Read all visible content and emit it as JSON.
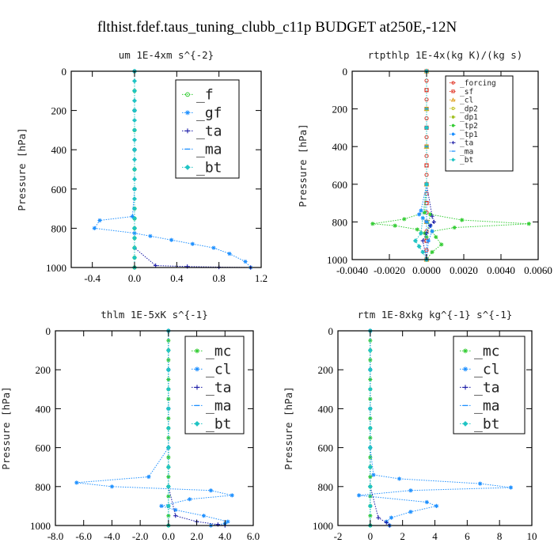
{
  "figure_title": "flthist.fdef.taus_tuning_clubb_c11p  BUDGET at250E,-12N",
  "chart_data": [
    {
      "type": "line",
      "title": "um  1E-4xm s^{-2}",
      "ylabel": "Pressure [hPa]",
      "xlim": [
        -0.6,
        1.2
      ],
      "ylim": [
        1000,
        0
      ],
      "xticks": [
        -0.4,
        0.0,
        0.4,
        0.8,
        1.2
      ],
      "xtick_labels": [
        "-0.4",
        "0.0",
        "0.4",
        "0.8",
        "1.2"
      ],
      "yticks": [
        0,
        200,
        400,
        600,
        800,
        1000
      ],
      "ytick_labels": [
        "0",
        "200",
        "400",
        "600",
        "800",
        "1000"
      ],
      "legend": "top-right",
      "series": [
        {
          "name": "_f",
          "color": "#33cc33",
          "marker": "circle",
          "x": [
            0.0,
            0.0,
            0.0,
            0.0,
            0.0,
            0.0,
            0.0,
            0.0,
            0.0,
            0.0,
            0.0,
            0.0,
            0.0,
            0.0
          ],
          "y": [
            0,
            100,
            200,
            300,
            400,
            500,
            600,
            700,
            750,
            800,
            850,
            900,
            950,
            1000
          ]
        },
        {
          "name": "_gf",
          "color": "#1e90ff",
          "marker": "star",
          "x": [
            0.0,
            0.0,
            0.0,
            0.0,
            -0.02,
            -0.33,
            -0.38,
            0.0,
            0.15,
            0.35,
            0.55,
            0.75,
            0.9,
            1.05,
            1.1
          ],
          "y": [
            0,
            200,
            400,
            600,
            740,
            760,
            800,
            825,
            840,
            860,
            880,
            900,
            930,
            970,
            1000
          ]
        },
        {
          "name": "_ta",
          "color": "#1a1aa6",
          "marker": "plus",
          "x": [
            0.0,
            0.0,
            0.0,
            0.0,
            0.0,
            0.0,
            0.2,
            0.5,
            0.8,
            1.1
          ],
          "y": [
            0,
            200,
            400,
            600,
            800,
            900,
            990,
            995,
            998,
            1000
          ]
        },
        {
          "name": "_ma",
          "color": "#1e90ff",
          "marker": "dash",
          "x": [
            0.0,
            0.0,
            0.0,
            0.0,
            0.0,
            0.0
          ],
          "y": [
            0,
            200,
            400,
            600,
            800,
            1000
          ]
        },
        {
          "name": "_bt",
          "color": "#20c4c4",
          "marker": "diamond",
          "x": [
            0.0,
            0.0,
            0.0,
            0.0,
            0.0,
            0.0,
            0.0,
            0.0,
            0.0,
            0.0,
            0.0,
            0.0,
            0.0,
            0.0,
            0.0,
            0.0,
            0.0,
            0.0,
            0.0,
            0.0,
            0.0
          ],
          "y": [
            0,
            50,
            100,
            150,
            200,
            250,
            300,
            350,
            400,
            450,
            500,
            550,
            600,
            650,
            700,
            750,
            800,
            850,
            900,
            950,
            1000
          ]
        }
      ]
    },
    {
      "type": "line",
      "title": "rtpthlp  1E-4x(kg K)/(kg s)",
      "ylabel": "Pressure [hPa]",
      "xlim": [
        -0.004,
        0.006
      ],
      "ylim": [
        1000,
        0
      ],
      "xticks": [
        -0.004,
        -0.002,
        0.0,
        0.002,
        0.004,
        0.006
      ],
      "xtick_labels": [
        "-0.0040",
        "-0.0020",
        "0.0000",
        "0.0020",
        "0.0040",
        "0.0060"
      ],
      "yticks": [
        0,
        200,
        400,
        600,
        800,
        1000
      ],
      "ytick_labels": [
        "0",
        "200",
        "400",
        "600",
        "800",
        "1000"
      ],
      "legend": "top-right",
      "series": [
        {
          "name": "_forcing",
          "color": "#e03020",
          "marker": "circle",
          "x": [
            0,
            0,
            0,
            0,
            0,
            0,
            0,
            0,
            0,
            0,
            0,
            0,
            0,
            0,
            0,
            0,
            0,
            0,
            0,
            0,
            0
          ],
          "y": [
            0,
            50,
            100,
            150,
            200,
            250,
            300,
            350,
            400,
            450,
            500,
            550,
            600,
            650,
            700,
            750,
            800,
            850,
            900,
            950,
            1000
          ]
        },
        {
          "name": "_sf",
          "color": "#e03020",
          "marker": "square",
          "x": [
            0,
            0,
            0,
            0,
            0,
            0,
            0,
            0,
            0,
            0,
            0
          ],
          "y": [
            0,
            100,
            200,
            300,
            400,
            500,
            600,
            700,
            800,
            900,
            1000
          ]
        },
        {
          "name": "_cl",
          "color": "#e0a020",
          "marker": "triangle",
          "x": [
            0,
            0,
            0,
            0,
            0,
            0
          ],
          "y": [
            0,
            200,
            400,
            600,
            800,
            1000
          ]
        },
        {
          "name": "_dp2",
          "color": "#c0c020",
          "marker": "circle",
          "x": [
            0,
            0,
            0,
            0,
            0,
            0
          ],
          "y": [
            0,
            200,
            400,
            600,
            800,
            1000
          ]
        },
        {
          "name": "_dp1",
          "color": "#a0c020",
          "marker": "star",
          "x": [
            0,
            0,
            0,
            0,
            0,
            0
          ],
          "y": [
            0,
            200,
            400,
            600,
            800,
            1000
          ]
        },
        {
          "name": "_tp2",
          "color": "#33cc33",
          "marker": "star",
          "x": [
            0.0,
            0.0,
            0.0,
            -0.0001,
            -0.0012,
            -0.0029,
            -0.0017,
            -0.0005,
            -0.0001,
            0.0,
            0.0002,
            0.0019,
            0.0055,
            0.0015,
            0.0003,
            0.0005,
            0.0008,
            0.0003,
            0.0
          ],
          "y": [
            0,
            300,
            600,
            750,
            785,
            810,
            820,
            840,
            860,
            880,
            760,
            790,
            810,
            830,
            850,
            880,
            920,
            960,
            1000
          ]
        },
        {
          "name": "_tp1",
          "color": "#1e90ff",
          "marker": "star",
          "x": [
            0.0,
            0.0,
            0.0,
            -0.0003,
            -0.0004,
            -0.0002,
            0.0,
            0.0002,
            0.0003,
            0.0001,
            0.0
          ],
          "y": [
            0,
            300,
            600,
            740,
            760,
            780,
            800,
            820,
            850,
            900,
            1000
          ]
        },
        {
          "name": "_ta",
          "color": "#1a1aa6",
          "marker": "plus",
          "x": [
            0.0,
            0.0,
            0.0,
            0.0003,
            0.0004,
            0.0002,
            0.0,
            -0.0002,
            0.0
          ],
          "y": [
            0,
            300,
            600,
            770,
            800,
            820,
            860,
            900,
            1000
          ]
        },
        {
          "name": "_ma",
          "color": "#1e90ff",
          "marker": "dash",
          "x": [
            0,
            0,
            0,
            0,
            0,
            0
          ],
          "y": [
            0,
            200,
            400,
            600,
            800,
            1000
          ]
        },
        {
          "name": "_bt",
          "color": "#20c4c4",
          "marker": "diamond",
          "x": [
            0.0,
            0.0,
            0.0,
            -0.0003,
            -0.0006,
            -0.0004,
            -0.0002,
            0.0
          ],
          "y": [
            0,
            300,
            600,
            860,
            900,
            930,
            960,
            1000
          ]
        }
      ]
    },
    {
      "type": "line",
      "title": "thlm  1E-5xK s^{-1}",
      "ylabel": "Pressure [hPa]",
      "xlim": [
        -8.0,
        6.0
      ],
      "ylim": [
        1000,
        0
      ],
      "xticks": [
        -8.0,
        -6.0,
        -4.0,
        -2.0,
        0.0,
        2.0,
        4.0,
        6.0
      ],
      "xtick_labels": [
        "-8.0",
        "-6.0",
        "-4.0",
        "-2.0",
        "0.0",
        "2.0",
        "4.0",
        "6.0"
      ],
      "yticks": [
        0,
        200,
        400,
        600,
        800,
        1000
      ],
      "ytick_labels": [
        "0",
        "200",
        "400",
        "600",
        "800",
        "1000"
      ],
      "legend": "top-right",
      "series": [
        {
          "name": "_mc",
          "color": "#33cc33",
          "marker": "star",
          "x": [
            0,
            0,
            0,
            0,
            0,
            0,
            0,
            0,
            0,
            0,
            0,
            0,
            0,
            0,
            0,
            0,
            0,
            0,
            0,
            0,
            0
          ],
          "y": [
            0,
            50,
            100,
            150,
            200,
            250,
            300,
            350,
            400,
            450,
            500,
            550,
            600,
            650,
            700,
            750,
            800,
            850,
            900,
            950,
            1000
          ]
        },
        {
          "name": "_cl",
          "color": "#1e90ff",
          "marker": "star",
          "x": [
            0.0,
            0.0,
            0.0,
            0.0,
            -1.4,
            -6.5,
            -4.0,
            3.0,
            4.5,
            1.5,
            -0.5,
            0.5,
            2.5,
            4.2,
            4.0,
            3.0
          ],
          "y": [
            0,
            200,
            400,
            600,
            750,
            780,
            800,
            820,
            845,
            865,
            900,
            920,
            950,
            980,
            990,
            1000
          ]
        },
        {
          "name": "_ta",
          "color": "#1a1aa6",
          "marker": "plus",
          "x": [
            0.0,
            0.0,
            0.0,
            0.0,
            0.0,
            0.5,
            2.0,
            3.5,
            4.0
          ],
          "y": [
            0,
            200,
            400,
            600,
            800,
            950,
            980,
            995,
            1000
          ]
        },
        {
          "name": "_ma",
          "color": "#1e90ff",
          "marker": "dash",
          "x": [
            0,
            0,
            0,
            0,
            0,
            0
          ],
          "y": [
            0,
            200,
            400,
            600,
            800,
            1000
          ]
        },
        {
          "name": "_bt",
          "color": "#20c4c4",
          "marker": "diamond",
          "x": [
            0,
            0,
            0,
            0,
            0,
            0,
            0,
            0,
            0,
            0,
            0
          ],
          "y": [
            0,
            100,
            200,
            300,
            400,
            500,
            600,
            700,
            800,
            900,
            1000
          ]
        }
      ]
    },
    {
      "type": "line",
      "title": "rtm  1E-8xkg kg^{-1} s^{-1}",
      "ylabel": "Pressure [hPa]",
      "xlim": [
        -2,
        10
      ],
      "ylim": [
        1000,
        0
      ],
      "xticks": [
        -2,
        0,
        2,
        4,
        6,
        8,
        10
      ],
      "xtick_labels": [
        "-2",
        "0",
        "2",
        "4",
        "6",
        "8",
        "10"
      ],
      "yticks": [
        0,
        200,
        400,
        600,
        800,
        1000
      ],
      "ytick_labels": [
        "0",
        "200",
        "400",
        "600",
        "800",
        "1000"
      ],
      "legend": "top-right",
      "series": [
        {
          "name": "_mc",
          "color": "#33cc33",
          "marker": "star",
          "x": [
            0,
            0,
            0,
            0,
            0,
            0,
            0,
            0,
            0,
            0,
            0,
            0,
            0,
            0,
            0,
            0,
            0,
            0,
            0,
            0,
            0
          ],
          "y": [
            0,
            50,
            100,
            150,
            200,
            250,
            300,
            350,
            400,
            450,
            500,
            550,
            600,
            650,
            700,
            750,
            800,
            850,
            900,
            950,
            1000
          ]
        },
        {
          "name": "_cl",
          "color": "#1e90ff",
          "marker": "star",
          "x": [
            0.0,
            0.0,
            0.0,
            0.0,
            0.2,
            1.8,
            6.8,
            8.7,
            2.5,
            -0.7,
            3.5,
            4.1,
            2.5,
            1.3,
            1.0,
            1.2
          ],
          "y": [
            0,
            200,
            400,
            600,
            740,
            760,
            785,
            805,
            820,
            845,
            880,
            900,
            930,
            960,
            980,
            1000
          ]
        },
        {
          "name": "_ta",
          "color": "#1a1aa6",
          "marker": "plus",
          "x": [
            0.0,
            0.0,
            0.0,
            0.0,
            0.5,
            1.0,
            1.2
          ],
          "y": [
            0,
            200,
            400,
            800,
            960,
            985,
            1000
          ]
        },
        {
          "name": "_ma",
          "color": "#1e90ff",
          "marker": "dash",
          "x": [
            0,
            0,
            0,
            0,
            0,
            0
          ],
          "y": [
            0,
            200,
            400,
            600,
            800,
            1000
          ]
        },
        {
          "name": "_bt",
          "color": "#20c4c4",
          "marker": "diamond",
          "x": [
            0,
            0,
            0,
            0,
            0,
            0,
            0,
            0,
            0,
            0,
            0
          ],
          "y": [
            0,
            100,
            200,
            300,
            400,
            500,
            600,
            700,
            800,
            900,
            1000
          ]
        }
      ]
    }
  ]
}
